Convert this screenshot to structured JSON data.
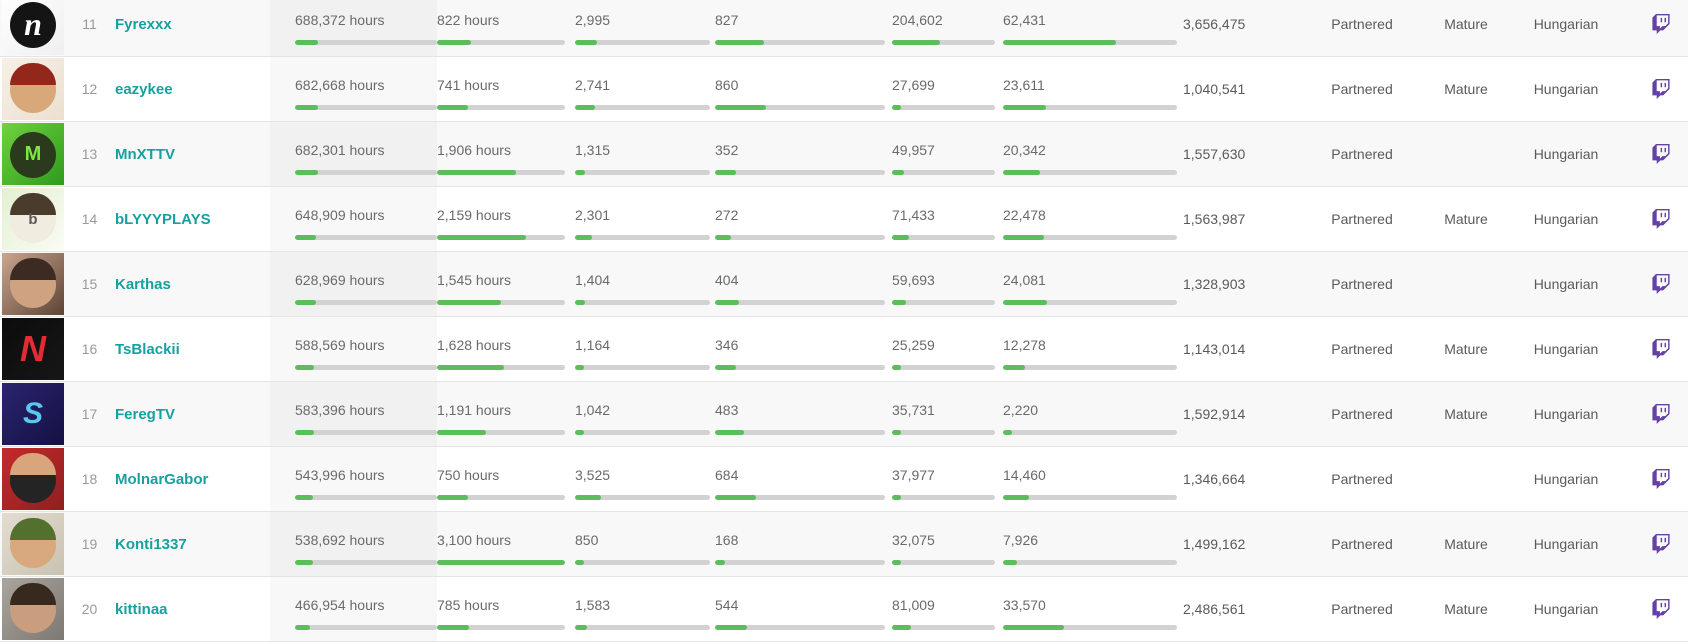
{
  "colors": {
    "bar_fill_green": "#5bbd5b",
    "bar_track_gray": "#d2d2d2",
    "channel_link_teal": "#17a0a0",
    "twitch_purple": "#6441a4",
    "row_stripe": "#f8f8f8"
  },
  "icons": {
    "platform": "twitch-icon"
  },
  "rows": [
    {
      "rank": "11",
      "name": "Fyrexxx",
      "metrics": [
        {
          "label": "688,372 hours",
          "pct": 16.0
        },
        {
          "label": "822 hours",
          "pct": 26.5
        },
        {
          "label": "2,995",
          "pct": 16.2
        },
        {
          "label": "827",
          "pct": 29.0
        },
        {
          "label": "204,602",
          "pct": 47.0
        },
        {
          "label": "62,431",
          "pct": 65.0
        }
      ],
      "total": "3,656,475",
      "partnered": "Partnered",
      "mature": "Mature",
      "language": "Hungarian",
      "avatar": {
        "bg": [
          "#ffffff",
          "#efefef"
        ],
        "circle": "#141414",
        "letter": "n",
        "letter_color": "#ffffff",
        "letter_size": 32,
        "italic": true,
        "serif": true
      }
    },
    {
      "rank": "12",
      "name": "eazykee",
      "metrics": [
        {
          "label": "682,668 hours",
          "pct": 15.9
        },
        {
          "label": "741 hours",
          "pct": 23.9
        },
        {
          "label": "2,741",
          "pct": 14.8
        },
        {
          "label": "860",
          "pct": 30.2
        },
        {
          "label": "27,699",
          "pct": 6.4
        },
        {
          "label": "23,611",
          "pct": 24.6
        }
      ],
      "total": "1,040,541",
      "partnered": "Partnered",
      "mature": "Mature",
      "language": "Hungarian",
      "avatar": {
        "bg": [
          "#f7efe6",
          "#ece0d0"
        ],
        "circle": "#d8a87a",
        "cap": "#93271c"
      }
    },
    {
      "rank": "13",
      "name": "MnXTTV",
      "metrics": [
        {
          "label": "682,301 hours",
          "pct": 15.9
        },
        {
          "label": "1,906 hours",
          "pct": 61.5
        },
        {
          "label": "1,315",
          "pct": 7.1
        },
        {
          "label": "352",
          "pct": 12.4
        },
        {
          "label": "49,957",
          "pct": 11.5
        },
        {
          "label": "20,342",
          "pct": 21.2
        }
      ],
      "total": "1,557,630",
      "partnered": "Partnered",
      "mature": "",
      "language": "Hungarian",
      "avatar": {
        "bg": [
          "#6fd23f",
          "#2f9a1c"
        ],
        "circle": "#2b3a1d",
        "letter": "M",
        "letter_color": "#7ee83f",
        "letter_size": 20
      }
    },
    {
      "rank": "14",
      "name": "bLYYYPLAYS",
      "metrics": [
        {
          "label": "648,909 hours",
          "pct": 15.1
        },
        {
          "label": "2,159 hours",
          "pct": 69.6
        },
        {
          "label": "2,301",
          "pct": 12.4
        },
        {
          "label": "272",
          "pct": 9.5
        },
        {
          "label": "71,433",
          "pct": 16.4
        },
        {
          "label": "22,478",
          "pct": 23.4
        }
      ],
      "total": "1,563,987",
      "partnered": "Partnered",
      "mature": "Mature",
      "language": "Hungarian",
      "avatar": {
        "bg": [
          "#e4f0d2",
          "#f9fcf4"
        ],
        "circle": "#f1ece0",
        "cap": "#4a3b2d",
        "letter": "b",
        "letter_color": "#5a5a5a",
        "letter_size": 15
      }
    },
    {
      "rank": "15",
      "name": "Karthas",
      "metrics": [
        {
          "label": "628,969 hours",
          "pct": 14.6
        },
        {
          "label": "1,545 hours",
          "pct": 49.8
        },
        {
          "label": "1,404",
          "pct": 7.6
        },
        {
          "label": "404",
          "pct": 14.2
        },
        {
          "label": "59,693",
          "pct": 13.7
        },
        {
          "label": "24,081",
          "pct": 25.1
        }
      ],
      "total": "1,328,903",
      "partnered": "Partnered",
      "mature": "",
      "language": "Hungarian",
      "avatar": {
        "bg": [
          "#c9a68f",
          "#5d4335"
        ],
        "circle": "#cfa382",
        "cap": "#3c2b22"
      }
    },
    {
      "rank": "16",
      "name": "TsBlackii",
      "metrics": [
        {
          "label": "588,569 hours",
          "pct": 13.7
        },
        {
          "label": "1,628 hours",
          "pct": 52.5
        },
        {
          "label": "1,164",
          "pct": 6.3
        },
        {
          "label": "346",
          "pct": 12.1
        },
        {
          "label": "25,259",
          "pct": 5.8
        },
        {
          "label": "12,278",
          "pct": 12.8
        }
      ],
      "total": "1,143,014",
      "partnered": "Partnered",
      "mature": "Mature",
      "language": "Hungarian",
      "avatar": {
        "bg": [
          "#0c0c0c",
          "#161616"
        ],
        "letter": "N",
        "letter_color": "#e42a33",
        "letter_size": 36,
        "italic": true
      }
    },
    {
      "rank": "17",
      "name": "FeregTV",
      "metrics": [
        {
          "label": "583,396 hours",
          "pct": 13.6
        },
        {
          "label": "1,191 hours",
          "pct": 38.4
        },
        {
          "label": "1,042",
          "pct": 5.6
        },
        {
          "label": "483",
          "pct": 16.9
        },
        {
          "label": "35,731",
          "pct": 8.2
        },
        {
          "label": "2,220",
          "pct": 2.3
        }
      ],
      "total": "1,592,914",
      "partnered": "Partnered",
      "mature": "Mature",
      "language": "Hungarian",
      "avatar": {
        "bg": [
          "#2b2470",
          "#141142"
        ],
        "letter": "S",
        "letter_color": "#59c7ee",
        "letter_size": 30,
        "italic": true
      }
    },
    {
      "rank": "18",
      "name": "MolnarGabor",
      "metrics": [
        {
          "label": "543,996 hours",
          "pct": 12.7
        },
        {
          "label": "750 hours",
          "pct": 24.2
        },
        {
          "label": "3,525",
          "pct": 19.1
        },
        {
          "label": "684",
          "pct": 24.0
        },
        {
          "label": "37,977",
          "pct": 8.7
        },
        {
          "label": "14,460",
          "pct": 15.1
        }
      ],
      "total": "1,346,664",
      "partnered": "Partnered",
      "mature": "",
      "language": "Hungarian",
      "avatar": {
        "bg": [
          "#c42a2b",
          "#8f1f20"
        ],
        "circle": "#242424",
        "cap": "#d8a57c"
      }
    },
    {
      "rank": "19",
      "name": "Konti1337",
      "metrics": [
        {
          "label": "538,692 hours",
          "pct": 12.5
        },
        {
          "label": "3,100 hours",
          "pct": 100
        },
        {
          "label": "850",
          "pct": 4.6
        },
        {
          "label": "168",
          "pct": 5.9
        },
        {
          "label": "32,075",
          "pct": 7.4
        },
        {
          "label": "7,926",
          "pct": 8.3
        }
      ],
      "total": "1,499,162",
      "partnered": "Partnered",
      "mature": "Mature",
      "language": "Hungarian",
      "avatar": {
        "bg": [
          "#e3ddd0",
          "#c9c2b2"
        ],
        "circle": "#d8a87e",
        "cap": "#53702f"
      }
    },
    {
      "rank": "20",
      "name": "kittinaa",
      "metrics": [
        {
          "label": "466,954 hours",
          "pct": 10.9
        },
        {
          "label": "785 hours",
          "pct": 25.3
        },
        {
          "label": "1,583",
          "pct": 8.6
        },
        {
          "label": "544",
          "pct": 19.1
        },
        {
          "label": "81,009",
          "pct": 18.6
        },
        {
          "label": "33,570",
          "pct": 35.0
        }
      ],
      "total": "2,486,561",
      "partnered": "Partnered",
      "mature": "Mature",
      "language": "Hungarian",
      "avatar": {
        "bg": [
          "#aaa59e",
          "#7d7871"
        ],
        "circle": "#c99e7e",
        "cap": "#38291f"
      }
    }
  ]
}
